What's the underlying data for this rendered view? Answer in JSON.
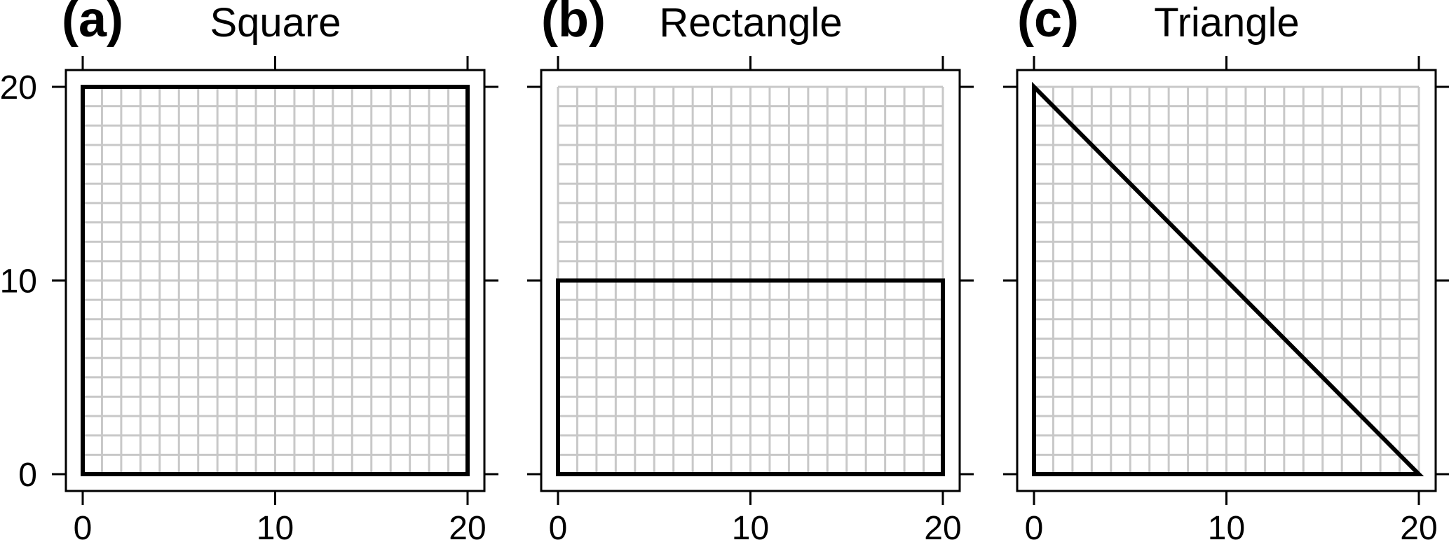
{
  "chart_data": [
    {
      "type": "line",
      "panel_label": "(a)",
      "title": "Square",
      "xlim": [
        0,
        20
      ],
      "ylim": [
        0,
        20
      ],
      "xticks": [
        0,
        10,
        20
      ],
      "yticks": [
        0,
        10,
        20
      ],
      "x_tick_labels": [
        "0",
        "10",
        "20"
      ],
      "y_tick_labels": [
        "0",
        "10",
        "20"
      ],
      "grid": true,
      "grid_step": 1,
      "shape": [
        [
          0,
          0
        ],
        [
          20,
          0
        ],
        [
          20,
          20
        ],
        [
          0,
          20
        ]
      ]
    },
    {
      "type": "line",
      "panel_label": "(b)",
      "title": "Rectangle",
      "xlim": [
        0,
        20
      ],
      "ylim": [
        0,
        20
      ],
      "xticks": [
        0,
        10,
        20
      ],
      "yticks": [
        0,
        10,
        20
      ],
      "x_tick_labels": [
        "0",
        "10",
        "20"
      ],
      "y_tick_labels": [],
      "grid": true,
      "grid_step": 1,
      "shape": [
        [
          0,
          0
        ],
        [
          20,
          0
        ],
        [
          20,
          10
        ],
        [
          0,
          10
        ]
      ]
    },
    {
      "type": "line",
      "panel_label": "(c)",
      "title": "Triangle",
      "xlim": [
        0,
        20
      ],
      "ylim": [
        0,
        20
      ],
      "xticks": [
        0,
        10,
        20
      ],
      "yticks": [
        0,
        10,
        20
      ],
      "x_tick_labels": [
        "0",
        "10",
        "20"
      ],
      "y_tick_labels": [],
      "grid": true,
      "grid_step": 1,
      "shape": [
        [
          0,
          0
        ],
        [
          20,
          0
        ],
        [
          0,
          20
        ]
      ]
    }
  ],
  "colors": {
    "grid": "#c8c8c8",
    "shape": "#000000",
    "frame": "#000000",
    "background": "#ffffff"
  }
}
